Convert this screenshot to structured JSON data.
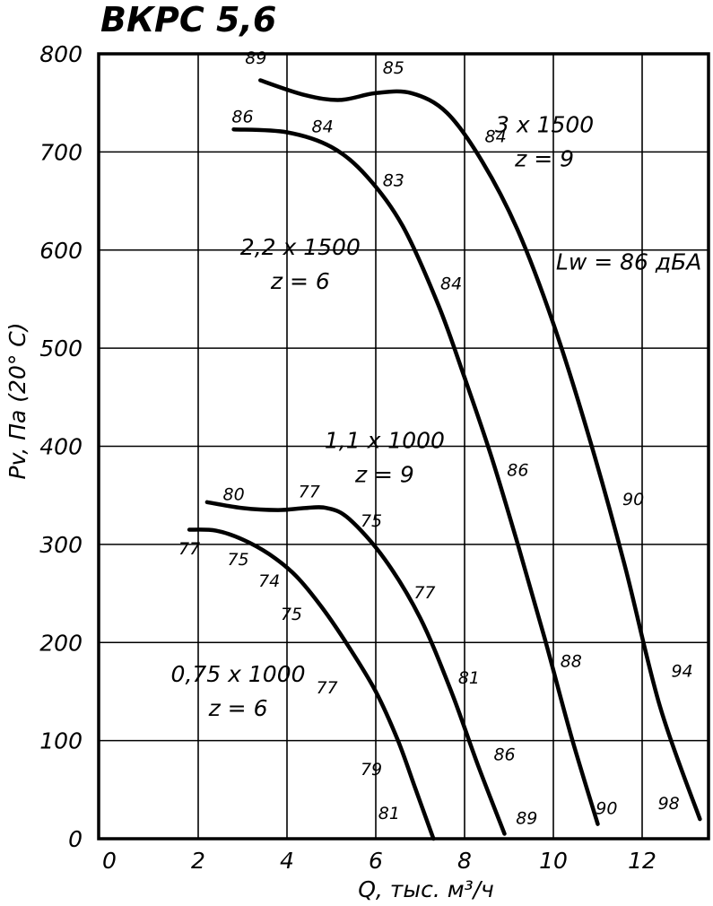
{
  "chart_data": {
    "type": "line",
    "title": "ВКРС 5,6",
    "xlabel": "Q, тыс. м³/ч",
    "ylabel": "Pv, Па (20° C)",
    "xlim": [
      0,
      14
    ],
    "ylim": [
      0,
      800
    ],
    "x_ticks": [
      "0",
      "2",
      "4",
      "6",
      "8",
      "10",
      "12"
    ],
    "y_ticks": [
      "0",
      "100",
      "200",
      "300",
      "400",
      "500",
      "600",
      "700",
      "800"
    ],
    "grid": true,
    "series": [
      {
        "points": [
          [
            1.8,
            315
          ],
          [
            2.4,
            314
          ],
          [
            3.0,
            305
          ],
          [
            3.6,
            290
          ],
          [
            4.2,
            268
          ],
          [
            4.8,
            235
          ],
          [
            5.4,
            195
          ],
          [
            6.0,
            150
          ],
          [
            6.5,
            100
          ],
          [
            6.9,
            50
          ],
          [
            7.3,
            0
          ]
        ],
        "labels": [
          {
            "x": 1.8,
            "y": 290,
            "text": "77"
          },
          {
            "x": 2.9,
            "y": 279,
            "text": "75"
          },
          {
            "x": 3.6,
            "y": 257,
            "text": "74"
          },
          {
            "x": 4.1,
            "y": 223,
            "text": "75"
          },
          {
            "x": 4.9,
            "y": 148,
            "text": "77"
          },
          {
            "x": 5.9,
            "y": 65,
            "text": "79"
          },
          {
            "x": 6.3,
            "y": 20,
            "text": "81"
          }
        ]
      },
      {
        "points": [
          [
            2.2,
            343
          ],
          [
            3.0,
            337
          ],
          [
            3.8,
            335
          ],
          [
            4.4,
            337
          ],
          [
            4.9,
            337
          ],
          [
            5.4,
            326
          ],
          [
            6.2,
            285
          ],
          [
            7.0,
            225
          ],
          [
            7.7,
            150
          ],
          [
            8.3,
            75
          ],
          [
            8.9,
            5
          ]
        ],
        "labels": [
          {
            "x": 2.8,
            "y": 345,
            "text": "80"
          },
          {
            "x": 4.5,
            "y": 348,
            "text": "77"
          },
          {
            "x": 5.9,
            "y": 318,
            "text": "75"
          },
          {
            "x": 7.1,
            "y": 245,
            "text": "77"
          },
          {
            "x": 8.1,
            "y": 158,
            "text": "81"
          },
          {
            "x": 8.9,
            "y": 80,
            "text": "86"
          },
          {
            "x": 9.4,
            "y": 15,
            "text": "89"
          }
        ]
      },
      {
        "points": [
          [
            2.8,
            723
          ],
          [
            4.0,
            720
          ],
          [
            5.0,
            705
          ],
          [
            5.8,
            675
          ],
          [
            6.6,
            625
          ],
          [
            7.4,
            545
          ],
          [
            8.0,
            470
          ],
          [
            8.6,
            390
          ],
          [
            9.2,
            300
          ],
          [
            9.8,
            205
          ],
          [
            10.4,
            105
          ],
          [
            11.0,
            15
          ]
        ],
        "labels": [
          {
            "x": 3.0,
            "y": 730,
            "text": "86"
          },
          {
            "x": 4.8,
            "y": 720,
            "text": "84"
          },
          {
            "x": 6.4,
            "y": 665,
            "text": "83"
          },
          {
            "x": 7.7,
            "y": 560,
            "text": "84"
          },
          {
            "x": 9.2,
            "y": 370,
            "text": "86"
          },
          {
            "x": 10.4,
            "y": 175,
            "text": "88"
          },
          {
            "x": 11.2,
            "y": 25,
            "text": "90"
          }
        ]
      },
      {
        "points": [
          [
            3.4,
            773
          ],
          [
            4.4,
            758
          ],
          [
            5.2,
            753
          ],
          [
            6.0,
            760
          ],
          [
            6.8,
            760
          ],
          [
            7.6,
            740
          ],
          [
            8.4,
            690
          ],
          [
            9.2,
            620
          ],
          [
            10.0,
            525
          ],
          [
            10.8,
            410
          ],
          [
            11.6,
            280
          ],
          [
            12.4,
            135
          ],
          [
            13.3,
            20
          ]
        ],
        "labels": [
          {
            "x": 3.3,
            "y": 790,
            "text": "89"
          },
          {
            "x": 6.4,
            "y": 780,
            "text": "85"
          },
          {
            "x": 8.7,
            "y": 710,
            "text": "84"
          },
          {
            "x": 11.8,
            "y": 340,
            "text": "90"
          },
          {
            "x": 12.9,
            "y": 165,
            "text": "94"
          },
          {
            "x": 12.6,
            "y": 30,
            "text": "98"
          }
        ]
      }
    ],
    "annotations": [
      {
        "x": 9.8,
        "y": 720,
        "lines": [
          "3 x 1500",
          "z = 9"
        ]
      },
      {
        "x": 4.3,
        "y": 595,
        "lines": [
          "2,2 x 1500",
          "z = 6"
        ]
      },
      {
        "x": 6.2,
        "y": 398,
        "lines": [
          "1,1 x 1000",
          "z = 9"
        ]
      },
      {
        "x": 2.9,
        "y": 160,
        "lines": [
          "0,75 x 1000",
          "z = 6"
        ]
      },
      {
        "x": 11.7,
        "y": 580,
        "lines": [
          "Lw = 86 дБА"
        ]
      }
    ]
  }
}
